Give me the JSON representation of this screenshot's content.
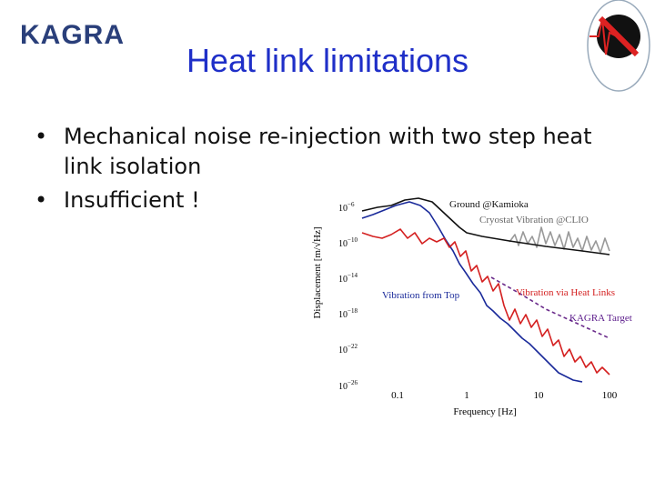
{
  "logo": "KAGRA",
  "title": "Heat link limitations",
  "bullets": [
    "Mechanical noise re-injection with two step heat link isolation",
    "Insufficient !"
  ],
  "figure": {
    "y_label": "Displacement [m/√Hz]",
    "x_label": "Frequency [Hz]",
    "x_ticks": [
      "0.1",
      "1",
      "10",
      "100"
    ],
    "y_ticks": [
      {
        "base": "10",
        "exp": "−6"
      },
      {
        "base": "10",
        "exp": "−10"
      },
      {
        "base": "10",
        "exp": "−14"
      },
      {
        "base": "10",
        "exp": "−18"
      },
      {
        "base": "10",
        "exp": "−22"
      },
      {
        "base": "10",
        "exp": "−26"
      }
    ],
    "legend": [
      "Ground @Kamioka",
      "Cryostat Vibration @CLIO",
      "Vibration from Top",
      "Vibration via Heat Links",
      "KAGRA Target"
    ]
  }
}
